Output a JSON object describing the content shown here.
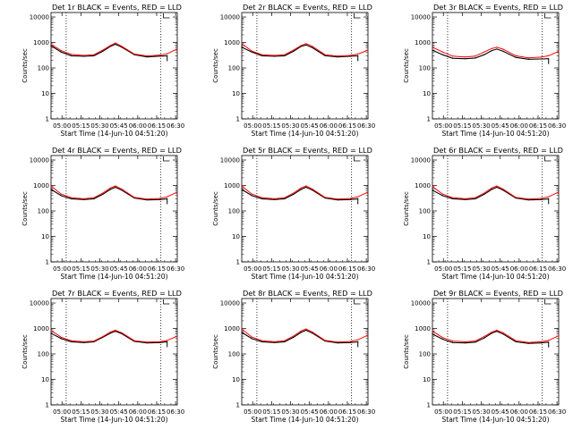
{
  "colors": {
    "events": "#000000",
    "lld": "#ff0000",
    "frame": "#000000",
    "marker": "#000000"
  },
  "shared": {
    "xlabel": "Start Time (14-Jun-10 04:51:20)",
    "ylabel": "Counts/sec",
    "yticks": [
      1,
      10,
      100,
      1000,
      10000
    ],
    "ytick_labels": [
      "1",
      "10",
      "100",
      "1000",
      "10000"
    ],
    "ylim": [
      1,
      15000
    ],
    "xlim_minutes": [
      0,
      100
    ],
    "xtick_minutes": [
      8.67,
      23.67,
      38.67,
      53.67,
      68.67,
      83.67,
      98.67
    ],
    "xtick_labels": [
      "05:00",
      "05:15",
      "05:30",
      "05:45",
      "06:00",
      "06:15",
      "06:30"
    ],
    "saa_markers_minutes": [
      12,
      87
    ]
  },
  "chart_data": [
    {
      "type": "line",
      "title": "Det 1r BLACK = Events, RED = LLD",
      "xlabel": "Start Time (14-Jun-10 04:51:20)",
      "ylabel": "Counts/sec",
      "x_minutes": [
        0,
        8,
        16,
        26,
        34,
        41,
        47,
        51,
        56,
        66,
        76,
        86,
        92,
        100
      ],
      "series": [
        {
          "name": "Events",
          "values": [
            750,
            420,
            300,
            285,
            300,
            450,
            700,
            850,
            650,
            330,
            270,
            290,
            300,
            null
          ]
        },
        {
          "name": "LLD",
          "values": [
            850,
            480,
            340,
            310,
            330,
            500,
            760,
            950,
            710,
            350,
            295,
            320,
            360,
            560
          ]
        }
      ]
    },
    {
      "type": "line",
      "title": "Det 2r BLACK = Events, RED = LLD",
      "xlabel": "Start Time (14-Jun-10 04:51:20)",
      "ylabel": "Counts/sec",
      "x_minutes": [
        0,
        8,
        16,
        26,
        34,
        41,
        47,
        51,
        56,
        66,
        76,
        86,
        92,
        100
      ],
      "series": [
        {
          "name": "Events",
          "values": [
            650,
            420,
            300,
            285,
            300,
            450,
            700,
            800,
            620,
            300,
            270,
            285,
            300,
            null
          ]
        },
        {
          "name": "LLD",
          "values": [
            900,
            460,
            330,
            310,
            330,
            500,
            760,
            900,
            700,
            330,
            290,
            310,
            350,
            500
          ]
        }
      ]
    },
    {
      "type": "line",
      "title": "Det 3r BLACK = Events, RED = LLD",
      "xlabel": "Start Time (14-Jun-10 04:51:20)",
      "ylabel": "Counts/sec",
      "x_minutes": [
        0,
        8,
        16,
        26,
        34,
        41,
        47,
        51,
        56,
        66,
        76,
        86,
        92,
        100
      ],
      "series": [
        {
          "name": "Events",
          "values": [
            500,
            330,
            240,
            230,
            245,
            330,
            480,
            550,
            450,
            260,
            220,
            225,
            230,
            null
          ]
        },
        {
          "name": "LLD",
          "values": [
            650,
            420,
            290,
            270,
            290,
            420,
            580,
            650,
            540,
            300,
            250,
            265,
            300,
            450
          ]
        }
      ]
    },
    {
      "type": "line",
      "title": "Det 4r BLACK = Events, RED = LLD",
      "xlabel": "Start Time (14-Jun-10 04:51:20)",
      "ylabel": "Counts/sec",
      "x_minutes": [
        0,
        8,
        16,
        26,
        34,
        41,
        47,
        51,
        56,
        66,
        76,
        86,
        92,
        100
      ],
      "series": [
        {
          "name": "Events",
          "values": [
            700,
            400,
            300,
            280,
            300,
            450,
            700,
            850,
            650,
            320,
            270,
            280,
            300,
            null
          ]
        },
        {
          "name": "LLD",
          "values": [
            950,
            460,
            330,
            300,
            330,
            500,
            800,
            950,
            720,
            340,
            290,
            310,
            360,
            550
          ]
        }
      ]
    },
    {
      "type": "line",
      "title": "Det 5r BLACK = Events, RED = LLD",
      "xlabel": "Start Time (14-Jun-10 04:51:20)",
      "ylabel": "Counts/sec",
      "x_minutes": [
        0,
        8,
        16,
        26,
        34,
        41,
        47,
        51,
        56,
        66,
        76,
        86,
        92,
        100
      ],
      "series": [
        {
          "name": "Events",
          "values": [
            700,
            400,
            300,
            280,
            300,
            450,
            700,
            850,
            650,
            320,
            270,
            280,
            300,
            null
          ]
        },
        {
          "name": "LLD",
          "values": [
            950,
            460,
            330,
            300,
            330,
            500,
            800,
            950,
            720,
            340,
            290,
            310,
            360,
            550
          ]
        }
      ]
    },
    {
      "type": "line",
      "title": "Det 6r BLACK = Events, RED = LLD",
      "xlabel": "Start Time (14-Jun-10 04:51:20)",
      "ylabel": "Counts/sec",
      "x_minutes": [
        0,
        8,
        16,
        26,
        34,
        41,
        47,
        51,
        56,
        66,
        76,
        86,
        92,
        100
      ],
      "series": [
        {
          "name": "Events",
          "values": [
            650,
            400,
            300,
            280,
            300,
            450,
            700,
            850,
            650,
            320,
            270,
            280,
            300,
            null
          ]
        },
        {
          "name": "LLD",
          "values": [
            900,
            460,
            330,
            300,
            330,
            500,
            800,
            950,
            720,
            340,
            290,
            310,
            360,
            550
          ]
        }
      ]
    },
    {
      "type": "line",
      "title": "Det 7r BLACK = Events, RED = LLD",
      "xlabel": "Start Time (14-Jun-10 04:51:20)",
      "ylabel": "Counts/sec",
      "x_minutes": [
        0,
        8,
        16,
        26,
        34,
        41,
        47,
        51,
        56,
        66,
        76,
        86,
        92,
        100
      ],
      "series": [
        {
          "name": "Events",
          "values": [
            650,
            400,
            300,
            280,
            300,
            450,
            650,
            780,
            620,
            310,
            270,
            280,
            300,
            null
          ]
        },
        {
          "name": "LLD",
          "values": [
            850,
            450,
            330,
            300,
            320,
            480,
            720,
            850,
            680,
            330,
            290,
            300,
            340,
            500
          ]
        }
      ]
    },
    {
      "type": "line",
      "title": "Det 8r BLACK = Events, RED = LLD",
      "xlabel": "Start Time (14-Jun-10 04:51:20)",
      "ylabel": "Counts/sec",
      "x_minutes": [
        0,
        8,
        16,
        26,
        34,
        41,
        47,
        51,
        56,
        66,
        76,
        86,
        92,
        100
      ],
      "series": [
        {
          "name": "Events",
          "values": [
            700,
            400,
            300,
            280,
            300,
            450,
            700,
            850,
            650,
            320,
            270,
            280,
            300,
            null
          ]
        },
        {
          "name": "LLD",
          "values": [
            950,
            460,
            330,
            300,
            330,
            500,
            800,
            950,
            720,
            340,
            290,
            310,
            360,
            550
          ]
        }
      ]
    },
    {
      "type": "line",
      "title": "Det 9r BLACK = Events, RED = LLD",
      "xlabel": "Start Time (14-Jun-10 04:51:20)",
      "ylabel": "Counts/sec",
      "x_minutes": [
        0,
        8,
        16,
        26,
        34,
        41,
        47,
        51,
        56,
        66,
        76,
        86,
        92,
        100
      ],
      "series": [
        {
          "name": "Events",
          "values": [
            600,
            380,
            280,
            270,
            290,
            420,
            650,
            780,
            600,
            300,
            260,
            270,
            290,
            null
          ]
        },
        {
          "name": "LLD",
          "values": [
            800,
            440,
            320,
            300,
            320,
            480,
            720,
            850,
            680,
            330,
            280,
            300,
            340,
            520
          ]
        }
      ]
    }
  ]
}
